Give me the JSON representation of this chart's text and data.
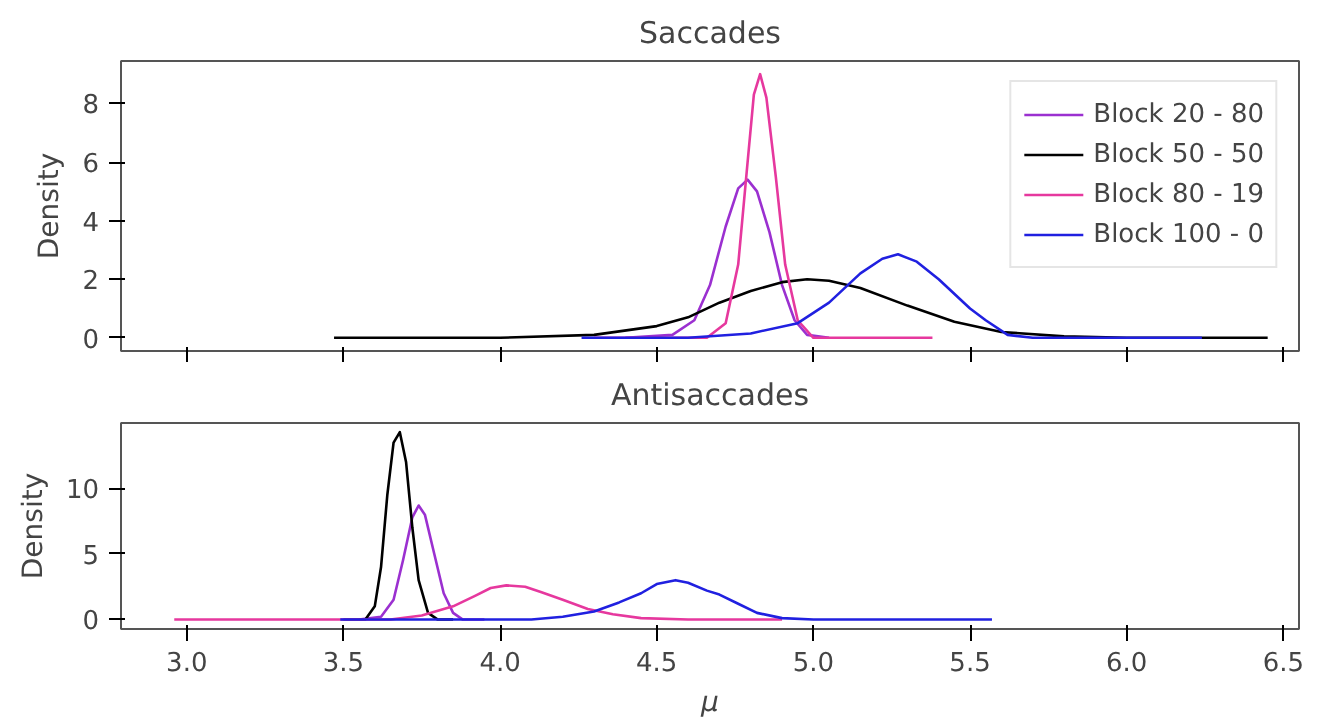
{
  "chart_data": [
    {
      "type": "line",
      "title": "Saccades",
      "ylabel": "Density",
      "xlim": [
        2.79,
        6.55
      ],
      "ylim": [
        -0.45,
        9.45
      ],
      "xticks": [
        3,
        3.5,
        4,
        4.5,
        5,
        5.5,
        6,
        6.5
      ],
      "yticks": [
        0,
        2,
        4,
        6,
        8
      ],
      "tick_labels": "y",
      "legend": "top right",
      "grid": false,
      "series": [
        {
          "name": "Block 20 - 80",
          "color": "#9b30d0",
          "x": [
            4.4,
            4.55,
            4.62,
            4.67,
            4.72,
            4.76,
            4.79,
            4.82,
            4.86,
            4.9,
            4.94,
            4.98,
            5.05
          ],
          "values": [
            0,
            0.1,
            0.6,
            1.8,
            3.8,
            5.1,
            5.4,
            5.0,
            3.6,
            1.8,
            0.6,
            0.1,
            0
          ]
        },
        {
          "name": "Block 50 - 50",
          "color": "#000000",
          "x": [
            3.47,
            4.0,
            4.3,
            4.5,
            4.6,
            4.7,
            4.8,
            4.9,
            4.98,
            5.05,
            5.15,
            5.3,
            5.45,
            5.6,
            5.8,
            6.0,
            6.45
          ],
          "values": [
            0,
            0,
            0.1,
            0.4,
            0.7,
            1.2,
            1.6,
            1.9,
            2.0,
            1.95,
            1.7,
            1.1,
            0.55,
            0.2,
            0.05,
            0,
            0
          ]
        },
        {
          "name": "Block 80 - 19",
          "color": "#e6389e",
          "x": [
            4.3,
            4.66,
            4.72,
            4.76,
            4.79,
            4.81,
            4.83,
            4.85,
            4.88,
            4.91,
            4.95,
            5.0,
            5.1,
            5.38
          ],
          "values": [
            0,
            0,
            0.5,
            2.5,
            6.0,
            8.3,
            9.0,
            8.2,
            5.5,
            2.5,
            0.6,
            0,
            0,
            0
          ]
        },
        {
          "name": "Block 100 - 0",
          "color": "#2020e0",
          "x": [
            4.26,
            4.6,
            4.8,
            4.95,
            5.05,
            5.15,
            5.22,
            5.27,
            5.33,
            5.4,
            5.5,
            5.55,
            5.62,
            5.7,
            6.0,
            6.24
          ],
          "values": [
            0,
            0,
            0.15,
            0.5,
            1.2,
            2.2,
            2.7,
            2.85,
            2.6,
            2.0,
            1.0,
            0.6,
            0.1,
            0,
            0,
            0
          ]
        }
      ]
    },
    {
      "type": "line",
      "title": "Antisaccades",
      "ylabel": "Density",
      "xlabel": "μ",
      "xlim": [
        2.79,
        6.55
      ],
      "ylim": [
        -0.73,
        15.0
      ],
      "xticks": [
        {
          "value": 3,
          "label": "3.0"
        },
        {
          "value": 3.5,
          "label": "3.5"
        },
        {
          "value": 4,
          "label": "4.0"
        },
        {
          "value": 4.5,
          "label": "4.5"
        },
        {
          "value": 5,
          "label": "5.0"
        },
        {
          "value": 5.5,
          "label": "5.5"
        },
        {
          "value": 6,
          "label": "6.0"
        },
        {
          "value": 6.5,
          "label": "6.5"
        }
      ],
      "yticks": [
        0,
        5,
        10
      ],
      "grid": false,
      "series": [
        {
          "color": "#9b30d0",
          "x": [
            3.55,
            3.62,
            3.66,
            3.69,
            3.72,
            3.74,
            3.76,
            3.79,
            3.82,
            3.85,
            3.88,
            3.95
          ],
          "values": [
            0,
            0.2,
            1.5,
            4.5,
            7.8,
            8.7,
            8.0,
            5.0,
            2.0,
            0.5,
            0,
            0
          ]
        },
        {
          "color": "#000000",
          "x": [
            3.5,
            3.57,
            3.6,
            3.62,
            3.64,
            3.66,
            3.68,
            3.7,
            3.72,
            3.74,
            3.77,
            3.8,
            3.85
          ],
          "values": [
            0,
            0,
            1.0,
            4.0,
            9.5,
            13.5,
            14.3,
            12.0,
            7.0,
            3.0,
            0.5,
            0,
            0
          ]
        },
        {
          "color": "#e6389e",
          "x": [
            2.96,
            3.5,
            3.65,
            3.75,
            3.85,
            3.92,
            3.97,
            4.02,
            4.08,
            4.13,
            4.2,
            4.28,
            4.36,
            4.45,
            4.6,
            4.9
          ],
          "values": [
            0,
            0,
            0,
            0.3,
            1.0,
            1.8,
            2.4,
            2.6,
            2.5,
            2.1,
            1.5,
            0.8,
            0.4,
            0.1,
            0,
            0
          ]
        },
        {
          "color": "#2020e0",
          "x": [
            3.49,
            3.9,
            4.1,
            4.2,
            4.3,
            4.38,
            4.45,
            4.5,
            4.56,
            4.6,
            4.66,
            4.7,
            4.76,
            4.82,
            4.9,
            5.0,
            5.2,
            5.57
          ],
          "values": [
            0,
            0,
            0,
            0.2,
            0.6,
            1.3,
            2.0,
            2.7,
            3.0,
            2.8,
            2.2,
            1.9,
            1.2,
            0.5,
            0.1,
            0,
            0,
            0
          ]
        }
      ]
    }
  ]
}
